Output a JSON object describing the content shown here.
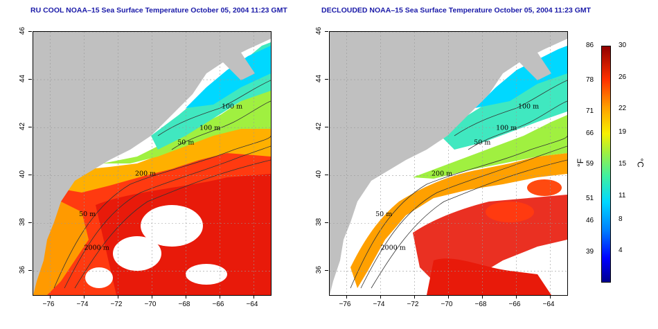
{
  "panels": [
    {
      "title": "RU COOL NOAA–15 Sea Surface Temperature October 05, 2004 11:23 GMT",
      "clouded": true
    },
    {
      "title": "DECLOUDED NOAA–15 Sea Surface Temperature October 05, 2004 11:23 GMT",
      "clouded": false
    }
  ],
  "axes": {
    "x_ticks": [
      "−76",
      "−74",
      "−72",
      "−70",
      "−68",
      "−66",
      "−64"
    ],
    "y_ticks": [
      "46",
      "44",
      "42",
      "40",
      "38",
      "36"
    ],
    "lon_range": [
      -77,
      -63
    ],
    "lat_range": [
      35,
      46
    ]
  },
  "contour_labels": [
    {
      "text": "100 m",
      "lon": -65.9,
      "lat": 42.8
    },
    {
      "text": "100 m",
      "lon": -67.2,
      "lat": 41.9
    },
    {
      "text": "50 m",
      "lon": -68.5,
      "lat": 41.3
    },
    {
      "text": "200 m",
      "lon": -71.0,
      "lat": 40.0
    },
    {
      "text": "50 m",
      "lon": -74.3,
      "lat": 38.3
    },
    {
      "text": "2000 m",
      "lon": -74.0,
      "lat": 36.9
    }
  ],
  "colorbar": {
    "unit_f": "°F",
    "unit_c": "°C",
    "fahrenheit": [
      {
        "label": "86",
        "c": 30
      },
      {
        "label": "78",
        "c": 25.6
      },
      {
        "label": "71",
        "c": 21.7
      },
      {
        "label": "66",
        "c": 18.9
      },
      {
        "label": "59",
        "c": 15
      },
      {
        "label": "51",
        "c": 10.6
      },
      {
        "label": "46",
        "c": 7.8
      },
      {
        "label": "39",
        "c": 3.9
      }
    ],
    "celsius": [
      {
        "label": "30",
        "c": 30
      },
      {
        "label": "26",
        "c": 26
      },
      {
        "label": "22",
        "c": 22
      },
      {
        "label": "19",
        "c": 19
      },
      {
        "label": "15",
        "c": 15
      },
      {
        "label": "11",
        "c": 11
      },
      {
        "label": "8",
        "c": 8
      },
      {
        "label": "4",
        "c": 4
      }
    ],
    "range_c": [
      0,
      30
    ],
    "colors": [
      "#00008f",
      "#0000ff",
      "#0080ff",
      "#00d8ff",
      "#40f0a0",
      "#a0f040",
      "#f8f000",
      "#ffa000",
      "#ff3000",
      "#900000"
    ]
  },
  "map_colors": {
    "land": "#c0c0c0",
    "cloud": "#ffffff"
  }
}
